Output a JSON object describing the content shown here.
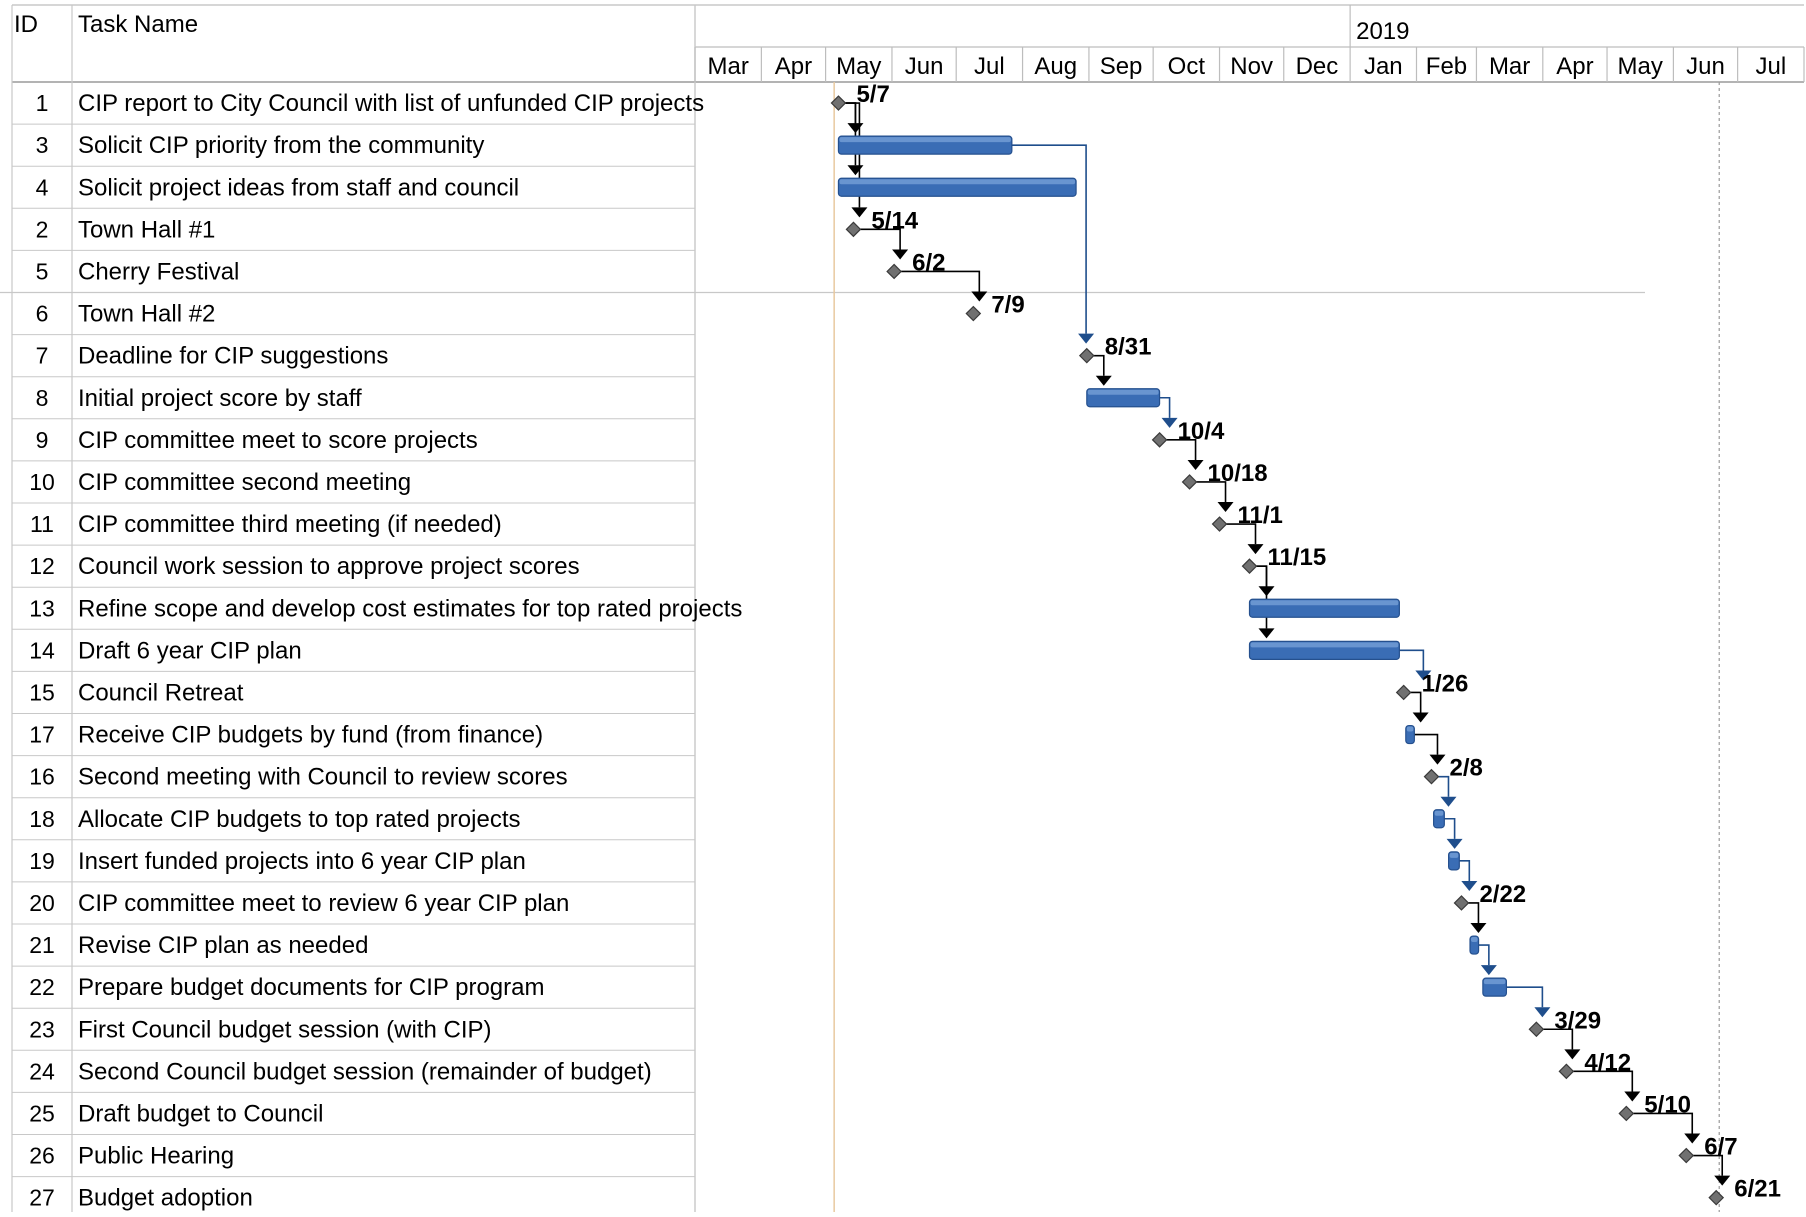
{
  "chart_data": {
    "type": "gantt",
    "columns": {
      "id": "ID",
      "name": "Task Name"
    },
    "timescale": {
      "year_label": "2019",
      "months": [
        "Mar",
        "Apr",
        "May",
        "Jun",
        "Jul",
        "Aug",
        "Sep",
        "Oct",
        "Nov",
        "Dec",
        "Jan",
        "Feb",
        "Mar",
        "Apr",
        "May",
        "Jun",
        "Jul"
      ],
      "start": "2018-03-01",
      "end": "2019-07-31"
    },
    "tasks": [
      {
        "id": "1",
        "name": "CIP report to City Council with list of unfunded CIP projects",
        "type": "milestone",
        "date": "2018-05-07",
        "label": "5/7"
      },
      {
        "id": "3",
        "name": "Solicit CIP priority from the community",
        "type": "task",
        "start": "2018-05-07",
        "end": "2018-07-27"
      },
      {
        "id": "4",
        "name": "Solicit project ideas from staff and council",
        "type": "task",
        "start": "2018-05-07",
        "end": "2018-08-26"
      },
      {
        "id": "2",
        "name": "Town Hall #1",
        "type": "milestone",
        "date": "2018-05-14",
        "label": "5/14"
      },
      {
        "id": "5",
        "name": "Cherry Festival",
        "type": "milestone",
        "date": "2018-06-02",
        "label": "6/2"
      },
      {
        "id": "6",
        "name": "Town Hall #2",
        "type": "milestone",
        "date": "2018-07-09",
        "label": "7/9"
      },
      {
        "id": "7",
        "name": "Deadline for CIP suggestions",
        "type": "milestone",
        "date": "2018-08-31",
        "label": "8/31"
      },
      {
        "id": "8",
        "name": "Initial project score by staff",
        "type": "task",
        "start": "2018-08-31",
        "end": "2018-10-04"
      },
      {
        "id": "9",
        "name": "CIP committee meet to score projects",
        "type": "milestone",
        "date": "2018-10-04",
        "label": "10/4"
      },
      {
        "id": "10",
        "name": "CIP committee second meeting",
        "type": "milestone",
        "date": "2018-10-18",
        "label": "10/18"
      },
      {
        "id": "11",
        "name": "CIP committee third meeting (if needed)",
        "type": "milestone",
        "date": "2018-11-01",
        "label": "11/1"
      },
      {
        "id": "12",
        "name": "Council work session to approve project scores",
        "type": "milestone",
        "date": "2018-11-15",
        "label": "11/15"
      },
      {
        "id": "13",
        "name": "Refine scope and develop cost estimates for top rated projects",
        "type": "task",
        "start": "2018-11-15",
        "end": "2019-01-24"
      },
      {
        "id": "14",
        "name": "Draft 6 year CIP plan",
        "type": "task",
        "start": "2018-11-15",
        "end": "2019-01-24"
      },
      {
        "id": "15",
        "name": "Council Retreat",
        "type": "milestone",
        "date": "2019-01-26",
        "label": "1/26"
      },
      {
        "id": "17",
        "name": "Receive CIP budgets by fund (from finance)",
        "type": "task",
        "start": "2019-01-27",
        "end": "2019-01-31"
      },
      {
        "id": "16",
        "name": "Second meeting with Council to review scores",
        "type": "milestone",
        "date": "2019-02-08",
        "label": "2/8"
      },
      {
        "id": "18",
        "name": "Allocate CIP budgets to top rated projects",
        "type": "task",
        "start": "2019-02-09",
        "end": "2019-02-14"
      },
      {
        "id": "19",
        "name": "Insert funded projects into 6 year CIP plan",
        "type": "task",
        "start": "2019-02-16",
        "end": "2019-02-21"
      },
      {
        "id": "20",
        "name": "CIP committee meet to review 6 year CIP plan",
        "type": "milestone",
        "date": "2019-02-22",
        "label": "2/22"
      },
      {
        "id": "21",
        "name": "Revise CIP plan as needed",
        "type": "task",
        "start": "2019-02-26",
        "end": "2019-03-02"
      },
      {
        "id": "22",
        "name": "Prepare budget documents for CIP program",
        "type": "task",
        "start": "2019-03-04",
        "end": "2019-03-15"
      },
      {
        "id": "23",
        "name": "First Council budget session (with CIP)",
        "type": "milestone",
        "date": "2019-03-29",
        "label": "3/29"
      },
      {
        "id": "24",
        "name": "Second Council budget session (remainder of budget)",
        "type": "milestone",
        "date": "2019-04-12",
        "label": "4/12"
      },
      {
        "id": "25",
        "name": "Draft budget to Council",
        "type": "milestone",
        "date": "2019-05-10",
        "label": "5/10"
      },
      {
        "id": "26",
        "name": "Public Hearing",
        "type": "milestone",
        "date": "2019-06-07",
        "label": "6/7"
      },
      {
        "id": "27",
        "name": "Budget adoption",
        "type": "milestone",
        "date": "2019-06-21",
        "label": "6/21"
      }
    ],
    "status_date": "2018-05-05",
    "finish_date": "2019-06-21",
    "colors": {
      "task_bar": "#3a6db5",
      "task_bar_edge": "#25508e",
      "milestone": "#707070",
      "link_black": "#000000",
      "link_blue": "#1f4e8c",
      "status_line": "#e8c9a0",
      "grid": "#c8c8c8"
    }
  }
}
